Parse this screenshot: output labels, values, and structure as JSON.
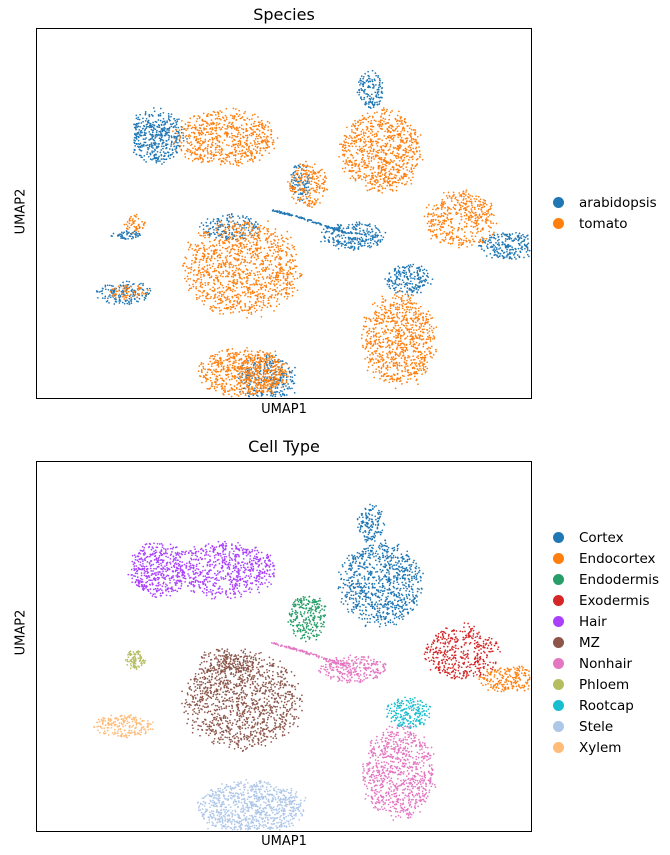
{
  "chart_data": [
    {
      "type": "scatter",
      "title": "Species",
      "xlabel": "UMAP1",
      "ylabel": "UMAP2",
      "grid": false,
      "ticks": false,
      "legend_placement": "right",
      "series": [
        {
          "name": "arabidopsis",
          "color": "#1f77b4"
        },
        {
          "name": "tomato",
          "color": "#ff7f0e"
        }
      ],
      "clusters": [
        {
          "cx": 122,
          "cy": 108,
          "rx": 27,
          "ry": 26,
          "n": 430,
          "series": 0
        },
        {
          "cx": 188,
          "cy": 110,
          "rx": 50,
          "ry": 27,
          "n": 650,
          "series": 1
        },
        {
          "cx": 335,
          "cy": 62,
          "rx": 13,
          "ry": 18,
          "n": 140,
          "series": 0
        },
        {
          "cx": 345,
          "cy": 123,
          "rx": 40,
          "ry": 40,
          "n": 820,
          "series": 1
        },
        {
          "cx": 272,
          "cy": 157,
          "rx": 19,
          "ry": 22,
          "n": 200,
          "series": 1
        },
        {
          "cx": 264,
          "cy": 155,
          "rx": 10,
          "ry": 18,
          "n": 90,
          "series": 0
        },
        {
          "cx": 425,
          "cy": 192,
          "rx": 35,
          "ry": 27,
          "n": 430,
          "series": 1
        },
        {
          "cx": 476,
          "cy": 218,
          "rx": 32,
          "ry": 13,
          "n": 260,
          "series": 0
        },
        {
          "cx": 99,
          "cy": 196,
          "rx": 10,
          "ry": 9,
          "n": 50,
          "series": 1
        },
        {
          "cx": 92,
          "cy": 207,
          "rx": 17,
          "ry": 4,
          "n": 55,
          "series": 0
        },
        {
          "cx": 206,
          "cy": 240,
          "rx": 56,
          "ry": 46,
          "n": 1150,
          "series": 1
        },
        {
          "cx": 195,
          "cy": 200,
          "rx": 30,
          "ry": 13,
          "n": 170,
          "series": 0
        },
        {
          "cx": 88,
          "cy": 265,
          "rx": 28,
          "ry": 11,
          "n": 150,
          "series": 0
        },
        {
          "cx": 92,
          "cy": 264,
          "rx": 20,
          "ry": 7,
          "n": 70,
          "series": 1
        },
        {
          "cx": 317,
          "cy": 208,
          "rx": 32,
          "ry": 13,
          "n": 260,
          "series": 0
        },
        {
          "cx": 372,
          "cy": 252,
          "rx": 22,
          "ry": 15,
          "n": 200,
          "series": 0
        },
        {
          "cx": 363,
          "cy": 312,
          "rx": 35,
          "ry": 44,
          "n": 820,
          "series": 1
        },
        {
          "cx": 208,
          "cy": 345,
          "rx": 45,
          "ry": 24,
          "n": 560,
          "series": 1
        },
        {
          "cx": 232,
          "cy": 352,
          "rx": 28,
          "ry": 24,
          "n": 330,
          "series": 0
        },
        {
          "cx": 225,
          "cy": 345,
          "rx": 22,
          "ry": 20,
          "n": 160,
          "series": 1
        }
      ],
      "bridge": [
        [
          236,
          182
        ],
        [
          262,
          189
        ],
        [
          290,
          198
        ],
        [
          310,
          205
        ]
      ],
      "bridge_series": 0
    },
    {
      "type": "scatter",
      "title": "Cell Type",
      "xlabel": "UMAP1",
      "ylabel": "UMAP2",
      "grid": false,
      "ticks": false,
      "legend_placement": "right",
      "series": [
        {
          "name": "Cortex",
          "color": "#1f77b4"
        },
        {
          "name": "Endocortex",
          "color": "#ff7f0e"
        },
        {
          "name": "Endodermis",
          "color": "#279e68"
        },
        {
          "name": "Exodermis",
          "color": "#d62728"
        },
        {
          "name": "Hair",
          "color": "#aa40fc"
        },
        {
          "name": "MZ",
          "color": "#8c564b"
        },
        {
          "name": "Nonhair",
          "color": "#e377c2"
        },
        {
          "name": "Phloem",
          "color": "#b5bd61"
        },
        {
          "name": "Rootcap",
          "color": "#17becf"
        },
        {
          "name": "Stele",
          "color": "#aec7e8"
        },
        {
          "name": "Xylem",
          "color": "#ffbb78"
        }
      ],
      "clusters": [
        {
          "cx": 122,
          "cy": 108,
          "rx": 27,
          "ry": 26,
          "n": 430,
          "series": 4
        },
        {
          "cx": 188,
          "cy": 110,
          "rx": 50,
          "ry": 27,
          "n": 650,
          "series": 4
        },
        {
          "cx": 335,
          "cy": 62,
          "rx": 13,
          "ry": 18,
          "n": 140,
          "series": 0
        },
        {
          "cx": 345,
          "cy": 123,
          "rx": 40,
          "ry": 40,
          "n": 820,
          "series": 0
        },
        {
          "cx": 272,
          "cy": 157,
          "rx": 19,
          "ry": 22,
          "n": 260,
          "series": 2
        },
        {
          "cx": 425,
          "cy": 192,
          "rx": 35,
          "ry": 27,
          "n": 430,
          "series": 3
        },
        {
          "cx": 476,
          "cy": 218,
          "rx": 32,
          "ry": 13,
          "n": 260,
          "series": 1
        },
        {
          "cx": 99,
          "cy": 199,
          "rx": 10,
          "ry": 9,
          "n": 90,
          "series": 7
        },
        {
          "cx": 206,
          "cy": 240,
          "rx": 56,
          "ry": 46,
          "n": 1200,
          "series": 5
        },
        {
          "cx": 195,
          "cy": 200,
          "rx": 30,
          "ry": 13,
          "n": 150,
          "series": 5
        },
        {
          "cx": 88,
          "cy": 265,
          "rx": 28,
          "ry": 11,
          "n": 210,
          "series": 10
        },
        {
          "cx": 317,
          "cy": 208,
          "rx": 32,
          "ry": 13,
          "n": 260,
          "series": 6
        },
        {
          "cx": 372,
          "cy": 252,
          "rx": 22,
          "ry": 15,
          "n": 200,
          "series": 8
        },
        {
          "cx": 363,
          "cy": 312,
          "rx": 35,
          "ry": 44,
          "n": 820,
          "series": 6
        },
        {
          "cx": 215,
          "cy": 347,
          "rx": 52,
          "ry": 26,
          "n": 880,
          "series": 9
        }
      ],
      "bridge": [
        [
          236,
          182
        ],
        [
          262,
          189
        ],
        [
          290,
          198
        ],
        [
          310,
          205
        ]
      ],
      "bridge_series": 6
    }
  ]
}
